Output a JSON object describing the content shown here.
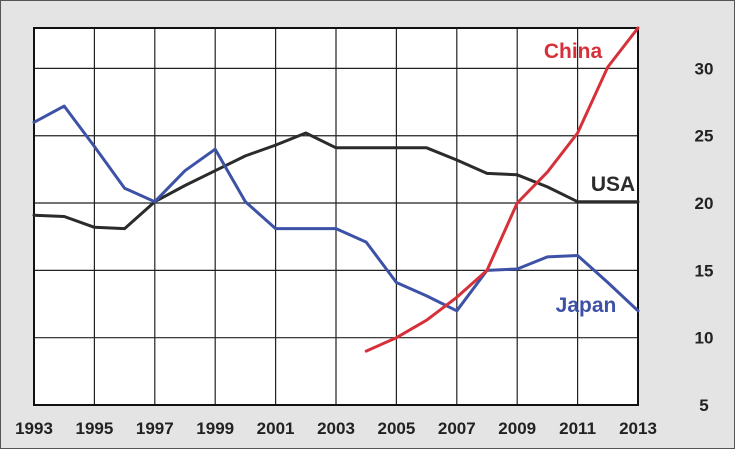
{
  "chart_data": {
    "type": "line",
    "title": "",
    "xlabel": "",
    "ylabel": "",
    "xlim": [
      1993,
      2013
    ],
    "ylim": [
      5,
      33
    ],
    "x_ticks": [
      "1993",
      "1995",
      "1997",
      "1999",
      "2001",
      "2003",
      "2005",
      "2007",
      "2009",
      "2011",
      "2013"
    ],
    "y_ticks": [
      "5",
      "10",
      "15",
      "20",
      "25",
      "30"
    ],
    "y_axis_side": "right",
    "grid": true,
    "legend": "inline labels",
    "series": [
      {
        "name": "USA",
        "color": "#2b2b2b",
        "points": [
          [
            1993,
            19.1
          ],
          [
            1994,
            19.0
          ],
          [
            1995,
            18.2
          ],
          [
            1996,
            18.1
          ],
          [
            1997,
            20.1
          ],
          [
            1998,
            21.3
          ],
          [
            1999,
            22.4
          ],
          [
            2000,
            23.5
          ],
          [
            2001,
            24.3
          ],
          [
            2002,
            25.2
          ],
          [
            2003,
            24.1
          ],
          [
            2004,
            24.1
          ],
          [
            2005,
            24.1
          ],
          [
            2006,
            24.1
          ],
          [
            2007,
            23.2
          ],
          [
            2008,
            22.2
          ],
          [
            2009,
            22.1
          ],
          [
            2010,
            21.2
          ],
          [
            2011,
            20.1
          ],
          [
            2012,
            20.1
          ],
          [
            2013,
            20.1
          ]
        ]
      },
      {
        "name": "Japan",
        "color": "#3d52a6",
        "points": [
          [
            1993,
            26.0
          ],
          [
            1994,
            27.2
          ],
          [
            1995,
            24.2
          ],
          [
            1996,
            21.1
          ],
          [
            1997,
            20.1
          ],
          [
            1998,
            22.4
          ],
          [
            1999,
            24.0
          ],
          [
            2000,
            20.1
          ],
          [
            2001,
            18.1
          ],
          [
            2002,
            18.1
          ],
          [
            2003,
            18.1
          ],
          [
            2004,
            17.1
          ],
          [
            2005,
            14.1
          ],
          [
            2006,
            13.1
          ],
          [
            2007,
            12.0
          ],
          [
            2008,
            15.0
          ],
          [
            2009,
            15.1
          ],
          [
            2010,
            16.0
          ],
          [
            2011,
            16.1
          ],
          [
            2012,
            14.1
          ],
          [
            2013,
            12.0
          ]
        ]
      },
      {
        "name": "China",
        "color": "#d6313a",
        "points": [
          [
            2004,
            9.0
          ],
          [
            2005,
            10.0
          ],
          [
            2006,
            11.3
          ],
          [
            2007,
            13.0
          ],
          [
            2008,
            15.0
          ],
          [
            2009,
            20.0
          ],
          [
            2010,
            22.3
          ],
          [
            2011,
            25.2
          ],
          [
            2012,
            30.1
          ],
          [
            2013,
            33.0
          ]
        ]
      }
    ]
  }
}
